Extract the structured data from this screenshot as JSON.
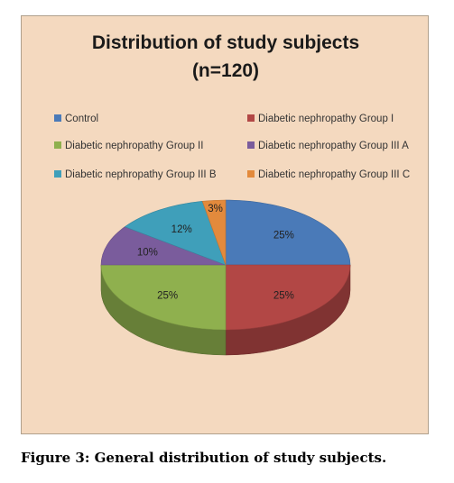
{
  "chart_data": {
    "type": "pie",
    "title": "Distribution of study subjects",
    "subtitle": "(n=120)",
    "legend_position": "top",
    "three_d": true,
    "categories": [
      "Control",
      "Diabetic nephropathy Group I",
      "Diabetic nephropathy Group II",
      "Diabetic nephropathy Group III A",
      "Diabetic nephropathy Group III B",
      "Diabetic nephropathy Group III C"
    ],
    "values": [
      25,
      25,
      25,
      10,
      12,
      3
    ],
    "data_labels": [
      "25%",
      "25%",
      "25%",
      "10%",
      "12%",
      "3%"
    ],
    "colors": [
      "#4a7ab8",
      "#b24745",
      "#8fb04e",
      "#7a5c9c",
      "#3f9fba",
      "#e38a3c"
    ]
  },
  "figure": {
    "caption": "Figure 3: General distribution of study subjects."
  }
}
